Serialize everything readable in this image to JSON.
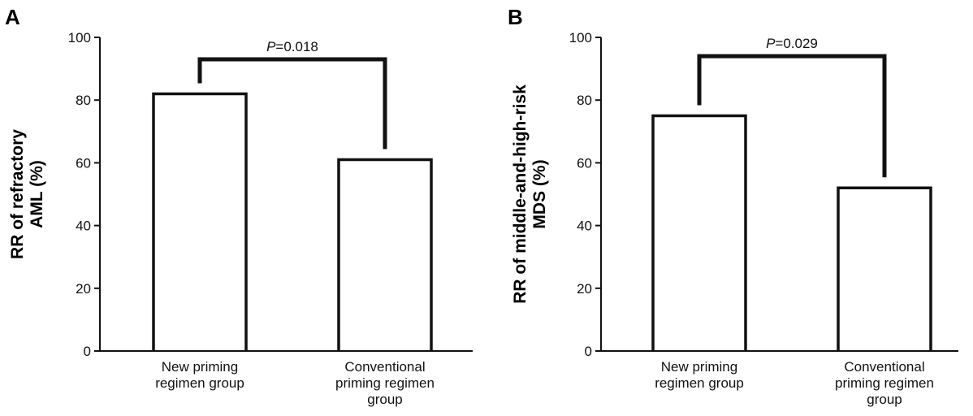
{
  "chart_data": [
    {
      "type": "bar",
      "panel_label": "A",
      "categories": [
        [
          "New priming",
          "regimen group"
        ],
        [
          "Conventional",
          "priming regimen",
          "group"
        ]
      ],
      "values": [
        82,
        61
      ],
      "ylabel": [
        "RR of refractory",
        "AML (%)"
      ],
      "ylim": [
        0,
        100
      ],
      "yticks": [
        0,
        20,
        40,
        60,
        80,
        100
      ],
      "grid": false,
      "annotation": {
        "p_label": "P",
        "p_text": "=0.018",
        "bracket_y": 93
      }
    },
    {
      "type": "bar",
      "panel_label": "B",
      "categories": [
        [
          "New priming",
          "regimen group"
        ],
        [
          "Conventional",
          "priming regimen",
          "group"
        ]
      ],
      "values": [
        75,
        52
      ],
      "ylabel": [
        "RR of middle-and-high-risk",
        "MDS (%)"
      ],
      "ylim": [
        0,
        100
      ],
      "yticks": [
        0,
        20,
        40,
        60,
        80,
        100
      ],
      "grid": false,
      "annotation": {
        "p_label": "P",
        "p_text": "=0.029",
        "bracket_y": 94
      }
    }
  ]
}
